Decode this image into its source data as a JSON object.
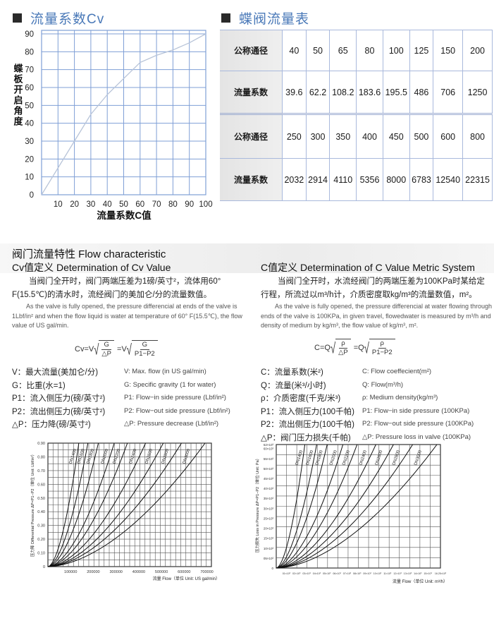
{
  "cv_section": {
    "title": "流量系数Cv"
  },
  "table_section": {
    "title": "蝶阀流量表"
  },
  "flow_table": {
    "rows": [
      {
        "label": "公称通径",
        "values": [
          "40",
          "50",
          "65",
          "80",
          "100",
          "125",
          "150",
          "200"
        ]
      },
      {
        "label": "流量系数",
        "values": [
          "39.6",
          "62.2",
          "108.2",
          "183.6",
          "195.5",
          "486",
          "706",
          "1250"
        ]
      },
      {
        "label": "公称通径",
        "values": [
          "250",
          "300",
          "350",
          "400",
          "450",
          "500",
          "600",
          "800"
        ]
      },
      {
        "label": "流量系数",
        "values": [
          "2032",
          "2914",
          "4110",
          "5356",
          "8000",
          "6783",
          "12540",
          "22315"
        ]
      }
    ]
  },
  "characteristic": {
    "title": "阀门流量特性 Flow characteristic",
    "cv": {
      "title": "Cv值定义 Determination of Cv Value",
      "zh_text": "当阀门全开时，阀门两端压差为1磅/英寸²，流体用60° F(15.5℃)的清水时，流经阀门的美加仑/分的流量数值。",
      "en_text": "As the valve is fully opened, the pressure differencial at ends of the valve is 1Lbf/in² and when the flow liquid is water at temperature of 60° F(15.5℃), the flow value of US gal/min.",
      "formula": {
        "lhs": "Cv=V",
        "num1": "G",
        "den1": "△P",
        "eq2": "=V",
        "num2": "G",
        "den2": "P1−P2"
      },
      "defs_zh": [
        "V：最大流量(美加仑/分)",
        "G：比重(水=1)",
        "P1：流入侧压力(磅/英寸²)",
        "P2：流出侧压力(磅/英寸²)",
        "△P：压力降(磅/英寸²)"
      ],
      "defs_en": [
        "V: Max. flow (in US gal/min)",
        "G: Specific gravity (1 for water)",
        "P1: Flow−in side pressure (Lbf/in²)",
        "P2: Flow−out side pressure (Lbf/in²)",
        "△P: Pressure decrease (Lbf/in²)"
      ]
    },
    "c": {
      "title": "C值定义 Determination of C Value Metric System",
      "zh_text": "当阀门全开时，水流经阀门的两端压差为100KPa时某给定行程，所流过以m³/h计，介质密度取kg/m³的流量数值，m²。",
      "en_text": "As the valve is fully opened, the pressure differencial at water flowing through ends of the valve is 100KPa, in given travel, flowedwater is measured by m³/h and density of medium by kg/m³, the flow value of kg/m³, m².",
      "formula": {
        "lhs": "C=Q",
        "num1": "ρ",
        "den1": "△P",
        "eq2": "=Q",
        "num2": "ρ",
        "den2": "P1−P2"
      },
      "defs_zh": [
        "C：流量系数(米²)",
        "Q：流量(米³/小时)",
        "ρ：介质密度(千克/米³)",
        "P1：流入侧压力(100千帕)",
        "P2：流出侧压力(100千帕)",
        "△P：阀门压力损失(千帕)"
      ],
      "defs_en": [
        "C: Flow coeffecient(m²)",
        "Q: Flow(m³/h)",
        "ρ: Medium density(kg/m³)",
        "P1: Flow−in side pressure (100KPa)",
        "P2: Flow−out side pressure (100KPa)",
        "△P: Pressure loss in valve (100KPa)"
      ]
    }
  },
  "chart_data": [
    {
      "type": "line",
      "xlabel": "流量系数C值",
      "ylabel": "蝶板开启角度",
      "xlim": [
        0,
        100
      ],
      "ylim": [
        0,
        90
      ],
      "xticks": [
        "10",
        "20",
        "30",
        "40",
        "50",
        "60",
        "70",
        "80",
        "90",
        "100"
      ],
      "yticks": [
        "0",
        "10",
        "20",
        "30",
        "40",
        "50",
        "60",
        "70",
        "80",
        "90"
      ],
      "grid": true,
      "line_color": "#b8c4d8",
      "grid_color": "#7f9fd6",
      "x": [
        0,
        10,
        20,
        30,
        40,
        50,
        60,
        70,
        80,
        90,
        100
      ],
      "y": [
        0,
        15,
        30,
        45,
        56,
        65,
        74,
        78,
        81,
        85,
        90
      ]
    },
    {
      "type": "line",
      "xlabel": "流量 Flow（单位 Unit: US gal/min）",
      "ylabel": "压力降 Differential Pressure ΔP=P1−P2（单位 Unit: Lbf/in²）",
      "xlim": [
        0,
        720000
      ],
      "ylim": [
        0,
        0.9
      ],
      "xticks": [
        "100000",
        "200000",
        "300000",
        "400000",
        "500000",
        "600000",
        "700000"
      ],
      "yticks": [
        "0",
        "0.10",
        "0.20",
        "0.30",
        "0.40",
        "0.50",
        "0.60",
        "0.70",
        "0.80",
        "0.90"
      ],
      "grid": true,
      "series": [
        {
          "name": "DN1400",
          "x_at_top": 136000
        },
        {
          "name": "DN1600",
          "x_at_top": 176000
        },
        {
          "name": "DN1800",
          "x_at_top": 222000
        },
        {
          "name": "DN2000",
          "x_at_top": 292000
        },
        {
          "name": "DN2200",
          "x_at_top": 350000
        },
        {
          "name": "DN2400",
          "x_at_top": 430000
        },
        {
          "name": "DN2600",
          "x_at_top": 508000
        },
        {
          "name": "DN2800",
          "x_at_top": 588000
        },
        {
          "name": "DN3000",
          "x_at_top": 692000
        }
      ]
    },
    {
      "type": "line",
      "xlabel": "流量 Flow（单位 Unit: m³/h）",
      "ylabel": "压力损失 Loss in Pressure ΔP=P1−P2（单位 Unit: Pa）",
      "xlim": [
        0,
        16.25
      ],
      "ylim": [
        0,
        62
      ],
      "xticks": [
        "01×10³",
        "02×10³",
        "03×10³",
        "04×10³",
        "05×10³",
        "06×10³",
        "07×10³",
        "08×10³",
        "09×10³",
        "10×10³",
        "11×10³",
        "12×10³",
        "13×10³",
        "14×10³",
        "15×10³",
        "16.25×10³"
      ],
      "yticks": [
        "0",
        "05×10³",
        "10×10³",
        "15×10³",
        "20×10³",
        "25×10³",
        "30×10³",
        "35×10³",
        "40×10³",
        "45×10³",
        "50×10³",
        "55×10³",
        "60×10³",
        "62×10³"
      ],
      "grid": true,
      "series": [
        {
          "name": "DN1400",
          "x_at_top": 2.83
        },
        {
          "name": "DN1600",
          "x_at_top": 4.0
        },
        {
          "name": "DN1800",
          "x_at_top": 5.04
        },
        {
          "name": "DN2000",
          "x_at_top": 6.6
        },
        {
          "name": "DN2200",
          "x_at_top": 8.0
        },
        {
          "name": "DN2400",
          "x_at_top": 9.86
        },
        {
          "name": "DN2600",
          "x_at_top": 11.6
        },
        {
          "name": "DN2800",
          "x_at_top": 13.5
        },
        {
          "name": "DN3000",
          "x_at_top": 15.9
        }
      ]
    }
  ]
}
